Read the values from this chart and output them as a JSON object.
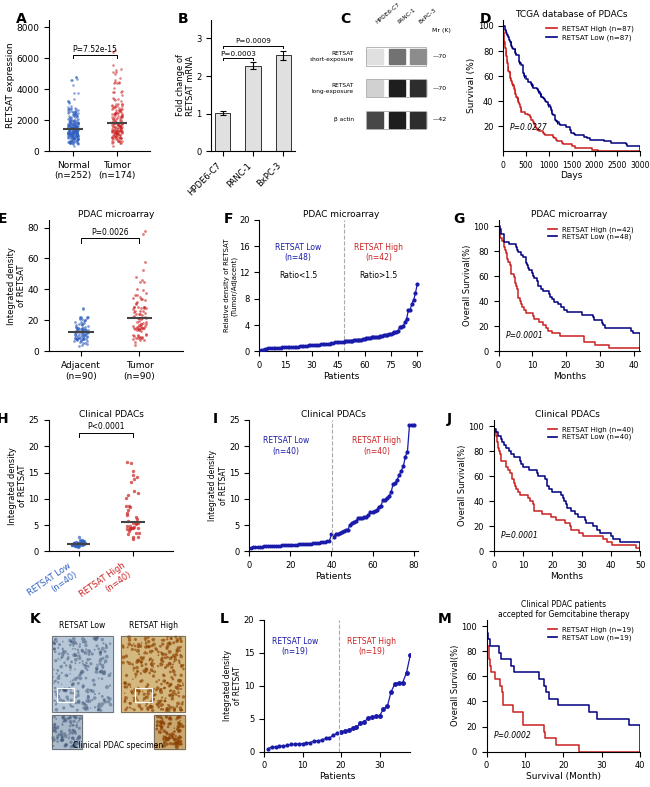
{
  "fig_background": "#ffffff",
  "panel_label_fontsize": 10,
  "A": {
    "ylabel": "RETSAT expression",
    "xlabel_normal": "Normal\n(n=252)",
    "xlabel_tumor": "Tumor\n(n=174)",
    "pvalue": "P=7.52e-15",
    "ylim": [
      0,
      8500
    ],
    "yticks": [
      0,
      2000,
      4000,
      6000,
      8000
    ],
    "blue_color": "#3060C0",
    "red_color": "#CC2020"
  },
  "B": {
    "ylabel": "Fold change of\nRETSAT mRNA",
    "categories": [
      "HPDE6-C7",
      "PANC-1",
      "BxPC-3"
    ],
    "values": [
      1.02,
      2.28,
      2.55
    ],
    "errors": [
      0.06,
      0.09,
      0.13
    ],
    "pvalue1": "P=0.0003",
    "pvalue2": "P=0.0009",
    "ylim": [
      0,
      3.5
    ],
    "yticks": [
      0,
      1,
      2,
      3
    ],
    "bar_color": "#e0e0e0",
    "bar_edge": "#333333"
  },
  "C": {
    "bands": [
      "HPDE6-C7",
      "PANC-1",
      "BxPC-3"
    ],
    "mr_values": [
      "70",
      "70",
      "42"
    ],
    "row_labels": [
      "RETSAT\nshort-exposure",
      "RETSAT\nlong-exposure",
      "β actin"
    ],
    "short_intensities": [
      0.12,
      0.55,
      0.45
    ],
    "long_intensities": [
      0.18,
      0.88,
      0.82
    ],
    "actin_intensities": [
      0.72,
      0.88,
      0.82
    ]
  },
  "D": {
    "title": "TCGA database of PDACs",
    "ylabel": "Survival (%)",
    "xlabel": "Days",
    "high_label": "RETSAT High (n=87)",
    "low_label": "RETSAT Low (n=87)",
    "pvalue": "P=0.0227",
    "xlim": [
      0,
      3000
    ],
    "ylim": [
      0,
      105
    ],
    "yticks": [
      20,
      40,
      60,
      80,
      100
    ],
    "xticks": [
      0,
      500,
      1000,
      1500,
      2000,
      2500,
      3000
    ],
    "high_color": "#CC2020",
    "low_color": "#000080"
  },
  "E": {
    "title": "PDAC microarray",
    "ylabel": "Integrated density\nof RETSAT",
    "xlabel_adj": "Adjacent\n(n=90)",
    "xlabel_tumor": "Tumor\n(n=90)",
    "pvalue": "P=0.0026",
    "ylim": [
      0,
      85
    ],
    "yticks": [
      0,
      20,
      40,
      60,
      80
    ],
    "blue_color": "#3060C0",
    "red_color": "#CC2020"
  },
  "F": {
    "title": "PDAC microarray",
    "ylabel": "Relative density of RETSAT\n(Tumor/Adjacent)",
    "xlabel": "Patients",
    "low_label": "RETSAT Low\n(n=48)",
    "high_label": "RETSAT High\n(n=42)",
    "low_text2": "Ratio<1.5",
    "high_text2": "Ratio>1.5",
    "divider": 48,
    "xlim": [
      0,
      93
    ],
    "ylim": [
      0,
      20
    ],
    "yticks": [
      0,
      4,
      8,
      12,
      16,
      20
    ],
    "xticks": [
      0,
      15,
      30,
      45,
      60,
      75,
      90
    ],
    "line_color": "#1a1aaa",
    "low_color": "#1a1aaa",
    "high_color": "#CC2020"
  },
  "G": {
    "title": "PDAC microarray",
    "ylabel": "Overall Survival(%)",
    "xlabel": "Months",
    "high_label": "RETSAT High (n=42)",
    "low_label": "RETSAT Low (n=48)",
    "pvalue": "P=0.0001",
    "xlim": [
      0,
      42
    ],
    "ylim": [
      0,
      105
    ],
    "yticks": [
      0,
      20,
      40,
      60,
      80,
      100
    ],
    "xticks": [
      0,
      10,
      20,
      30,
      40
    ],
    "high_color": "#CC2020",
    "low_color": "#000080"
  },
  "H": {
    "title": "Clinical PDACs",
    "ylabel": "Integrated density\nof RETSAT",
    "xlabel_low": "RETSAT Low\n(n=40)",
    "xlabel_high": "RETSAT High\n(n=40)",
    "pvalue": "P<0.0001",
    "ylim": [
      0,
      25
    ],
    "yticks": [
      0,
      5,
      10,
      15,
      20,
      25
    ],
    "blue_color": "#3060C0",
    "red_color": "#CC2020"
  },
  "I": {
    "title": "Clinical PDACs",
    "ylabel": "Integrated density\nof RETSAT",
    "xlabel": "Patients",
    "low_label": "RETSAT Low\n(n=40)",
    "high_label": "RETSAT High\n(n=40)",
    "divider": 40,
    "xlim": [
      0,
      82
    ],
    "ylim": [
      0,
      25
    ],
    "yticks": [
      0,
      5,
      10,
      15,
      20,
      25
    ],
    "xticks": [
      0,
      20,
      40,
      60,
      80
    ],
    "line_color": "#1a1aaa",
    "low_color": "#1a1aaa",
    "high_color": "#CC2020"
  },
  "J": {
    "title": "Clinical PDACs",
    "ylabel": "Overall Survival(%)",
    "xlabel": "Months",
    "high_label": "RETSAT High (n=40)",
    "low_label": "RETSAT Low (n=40)",
    "pvalue": "P=0.0001",
    "xlim": [
      0,
      50
    ],
    "ylim": [
      0,
      105
    ],
    "yticks": [
      0,
      20,
      40,
      60,
      80,
      100
    ],
    "xticks": [
      0,
      10,
      20,
      30,
      40,
      50
    ],
    "high_color": "#CC2020",
    "low_color": "#000080"
  },
  "K": {
    "title": "Clinical PDAC specimen",
    "low_label": "RETSAT Low",
    "high_label": "RETSAT High"
  },
  "L": {
    "ylabel": "Integrated density\nof RETSAT",
    "xlabel": "Patients",
    "low_label": "RETSAT Low\n(n=19)",
    "high_label": "RETSAT High\n(n=19)",
    "divider": 19,
    "xlim": [
      0,
      38
    ],
    "ylim": [
      0,
      20
    ],
    "yticks": [
      0,
      5,
      10,
      15,
      20
    ],
    "xticks": [
      0,
      10,
      20,
      30
    ],
    "line_color": "#1a1aaa",
    "low_color": "#1a1aaa",
    "high_color": "#CC2020"
  },
  "M": {
    "title": "Clinical PDAC patients\naccepted for Gemcitabine therapy",
    "ylabel": "Overall Survival(%)",
    "xlabel": "Survival (Month)",
    "high_label": "RETSAT High (n=19)",
    "low_label": "RETSAT Low (n=19)",
    "pvalue": "P=0.0002",
    "xlim": [
      0,
      40
    ],
    "ylim": [
      0,
      105
    ],
    "yticks": [
      0,
      20,
      40,
      60,
      80,
      100
    ],
    "xticks": [
      0,
      10,
      20,
      30,
      40
    ],
    "high_color": "#CC2020",
    "low_color": "#000080"
  }
}
